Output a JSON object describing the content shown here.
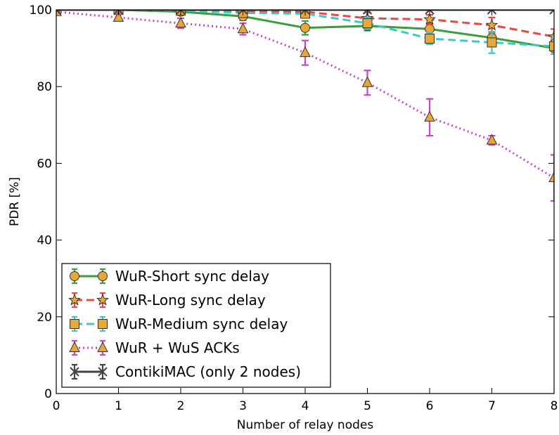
{
  "chart_data": {
    "type": "line",
    "xlabel": "Number of relay nodes",
    "ylabel": "PDR [%]",
    "xlim": [
      0,
      8
    ],
    "ylim": [
      0,
      100
    ],
    "xticks": [
      "0",
      "1",
      "2",
      "3",
      "4",
      "5",
      "6",
      "7",
      "8"
    ],
    "yticks": [
      "0",
      "20",
      "40",
      "60",
      "80",
      "100"
    ],
    "grid": false,
    "legend_position": "bottom-left",
    "series": [
      {
        "name": "WuR-Short sync delay",
        "color": "#3a9e3a",
        "marker": "circle",
        "line_style": "solid",
        "x": [
          0,
          1,
          2,
          3,
          4,
          5,
          6,
          7,
          8
        ],
        "y": [
          100,
          100,
          99.5,
          98.3,
          95.3,
          95.8,
          95.0,
          92.7,
          90.0
        ],
        "err": [
          0.3,
          0.3,
          0.5,
          1.0,
          1.8,
          1.2,
          1.5,
          1.5,
          1.5
        ]
      },
      {
        "name": "WuR-Long sync delay",
        "color": "#f04545",
        "marker": "star",
        "line_style": "dashed",
        "x": [
          0,
          1,
          2,
          3,
          4,
          5,
          6,
          7,
          8
        ],
        "y": [
          100,
          100,
          99.8,
          99.5,
          99.5,
          97.8,
          97.5,
          96.0,
          93.0
        ],
        "err": [
          0.2,
          0.2,
          0.3,
          0.4,
          0.6,
          1.5,
          1.2,
          2.0,
          2.0
        ]
      },
      {
        "name": "WuR-Medium sync delay",
        "color": "#40c8c8",
        "marker": "square",
        "line_style": "dashed",
        "x": [
          0,
          1,
          2,
          3,
          4,
          5,
          6,
          7,
          8
        ],
        "y": [
          100,
          100,
          99.8,
          99.2,
          99.0,
          96.5,
          92.5,
          91.5,
          90.5
        ],
        "err": [
          0.2,
          0.2,
          0.3,
          0.5,
          0.8,
          1.5,
          1.5,
          2.8,
          2.0
        ]
      },
      {
        "name": "WuR + WuS ACKs",
        "color": "#cc44cc",
        "marker": "triangle",
        "line_style": "dotted",
        "x": [
          0,
          1,
          2,
          3,
          4,
          5,
          6,
          7,
          8
        ],
        "y": [
          99.5,
          98.0,
          96.5,
          95.0,
          88.8,
          81.0,
          72.0,
          66.0,
          56.2
        ],
        "err": [
          0.3,
          0.8,
          1.3,
          1.5,
          3.2,
          3.2,
          4.8,
          1.2,
          6.0
        ]
      },
      {
        "name": "ContikiMAC (only 2 nodes)",
        "color": "#444444",
        "marker": "x",
        "line_style": "solid",
        "x": [
          0,
          1,
          2,
          3,
          4,
          5,
          6,
          7,
          8
        ],
        "y": [
          100,
          100,
          100,
          100,
          100,
          100,
          100,
          100,
          100
        ],
        "err": [
          0.1,
          0.1,
          0.1,
          0.1,
          0.1,
          0.1,
          0.1,
          0.1,
          0.1
        ]
      }
    ]
  }
}
